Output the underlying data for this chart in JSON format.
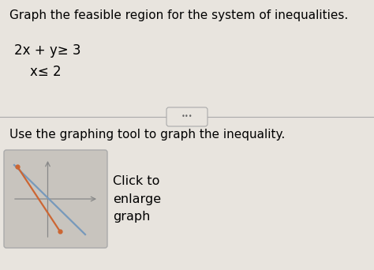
{
  "title_text": "Graph the feasible region for the system of inequalities.",
  "ineq1_text": "2x + y≥ 3",
  "ineq2_text": "x≤ 2",
  "body_text": "Use the graphing tool to graph the inequality.",
  "btn_line1": "Click to",
  "btn_line2": "enlarge",
  "btn_line3": "graph",
  "bg_color": "#e8e4de",
  "box_bg": "#c8c4be",
  "title_fontsize": 11.0,
  "body_fontsize": 11.0,
  "ineq_fontsize": 12.0,
  "btn_fontsize": 11.5,
  "divider_color": "#aaaaaa",
  "orange_color": "#cc6633",
  "blue_color": "#7799bb",
  "axis_color": "#888888"
}
